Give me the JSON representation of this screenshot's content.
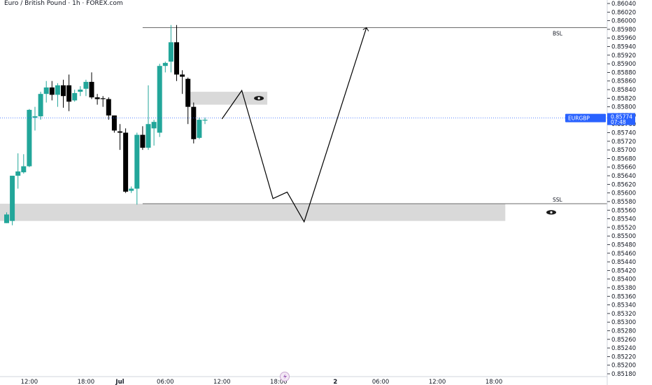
{
  "header": {
    "title": "Euro / British Pound · 1h · FOREX.com"
  },
  "colors": {
    "up": "#22a69a",
    "down": "#000000",
    "zone": "#d9d9d9",
    "price_tag": "#2962ff",
    "path": "#000000"
  },
  "levels": {
    "bsl": "BSL",
    "ssl": "SSL"
  },
  "price_tag": {
    "symbol": "EURGBP",
    "price": "0.85774",
    "countdown": "07:48"
  },
  "icons": {
    "zone_eye": "eye-icon",
    "timeline_marker": "lightning-icon"
  },
  "chart_data": {
    "type": "candlestick",
    "title": "Euro / British Pound · 1h · FOREX.com",
    "y_range": [
      0.8518,
      0.8604
    ],
    "y_ticks": [
      "0.86040",
      "0.86020",
      "0.86000",
      "0.85980",
      "0.85960",
      "0.85940",
      "0.85920",
      "0.85900",
      "0.85880",
      "0.85860",
      "0.85840",
      "0.85820",
      "0.85800",
      "0.85780",
      "0.85760",
      "0.85740",
      "0.85720",
      "0.85700",
      "0.85680",
      "0.85660",
      "0.85640",
      "0.85620",
      "0.85600",
      "0.85580",
      "0.85560",
      "0.85540",
      "0.85520",
      "0.85500",
      "0.85480",
      "0.85460",
      "0.85440",
      "0.85420",
      "0.85400",
      "0.85380",
      "0.85360",
      "0.85340",
      "0.85320",
      "0.85300",
      "0.85280",
      "0.85260",
      "0.85240",
      "0.85220",
      "0.85200",
      "0.85180"
    ],
    "x_labels": [
      {
        "label": "12:00",
        "bar": 4
      },
      {
        "label": "18:00",
        "bar": 14
      },
      {
        "label": "Jul",
        "bar": 20
      },
      {
        "label": "06:00",
        "bar": 28
      },
      {
        "label": "12:00",
        "bar": 38
      },
      {
        "label": "18:00",
        "bar": 48
      },
      {
        "label": "2",
        "bar": 58
      },
      {
        "label": "06:00",
        "bar": 66
      },
      {
        "label": "12:00",
        "bar": 76
      },
      {
        "label": "18:00",
        "bar": 86
      }
    ],
    "candles": [
      {
        "o": 0.8553,
        "h": 0.85555,
        "l": 0.8553,
        "c": 0.8555
      },
      {
        "o": 0.85535,
        "h": 0.8564,
        "l": 0.85525,
        "c": 0.8564
      },
      {
        "o": 0.8564,
        "h": 0.85692,
        "l": 0.8561,
        "c": 0.8565
      },
      {
        "o": 0.85648,
        "h": 0.8569,
        "l": 0.85645,
        "c": 0.85662
      },
      {
        "o": 0.85662,
        "h": 0.85795,
        "l": 0.8566,
        "c": 0.85793
      },
      {
        "o": 0.85775,
        "h": 0.858,
        "l": 0.85745,
        "c": 0.85778
      },
      {
        "o": 0.85778,
        "h": 0.85835,
        "l": 0.8577,
        "c": 0.8583
      },
      {
        "o": 0.8583,
        "h": 0.8586,
        "l": 0.8581,
        "c": 0.85845
      },
      {
        "o": 0.85845,
        "h": 0.8586,
        "l": 0.85815,
        "c": 0.85828
      },
      {
        "o": 0.85828,
        "h": 0.85855,
        "l": 0.858,
        "c": 0.8585
      },
      {
        "o": 0.8585,
        "h": 0.85863,
        "l": 0.85798,
        "c": 0.85825
      },
      {
        "o": 0.8585,
        "h": 0.85875,
        "l": 0.8579,
        "c": 0.85812
      },
      {
        "o": 0.85815,
        "h": 0.8584,
        "l": 0.85812,
        "c": 0.85832
      },
      {
        "o": 0.85835,
        "h": 0.85848,
        "l": 0.85825,
        "c": 0.8584
      },
      {
        "o": 0.85842,
        "h": 0.85863,
        "l": 0.85825,
        "c": 0.85858
      },
      {
        "o": 0.85858,
        "h": 0.8588,
        "l": 0.85818,
        "c": 0.85822
      },
      {
        "o": 0.85822,
        "h": 0.8583,
        "l": 0.85805,
        "c": 0.85818
      },
      {
        "o": 0.8582,
        "h": 0.85825,
        "l": 0.858,
        "c": 0.85818
      },
      {
        "o": 0.85818,
        "h": 0.85822,
        "l": 0.8577,
        "c": 0.8578
      },
      {
        "o": 0.8578,
        "h": 0.8578,
        "l": 0.8574,
        "c": 0.85745
      },
      {
        "o": 0.85743,
        "h": 0.8576,
        "l": 0.857,
        "c": 0.8574
      },
      {
        "o": 0.8574,
        "h": 0.8575,
        "l": 0.856,
        "c": 0.85603
      },
      {
        "o": 0.85605,
        "h": 0.85615,
        "l": 0.856,
        "c": 0.8561
      },
      {
        "o": 0.8561,
        "h": 0.8574,
        "l": 0.85573,
        "c": 0.85735
      },
      {
        "o": 0.85735,
        "h": 0.85755,
        "l": 0.857,
        "c": 0.85705
      },
      {
        "o": 0.85705,
        "h": 0.8585,
        "l": 0.857,
        "c": 0.8576
      },
      {
        "o": 0.8575,
        "h": 0.8577,
        "l": 0.8571,
        "c": 0.85765
      },
      {
        "o": 0.8574,
        "h": 0.859,
        "l": 0.8573,
        "c": 0.85895
      },
      {
        "o": 0.85895,
        "h": 0.85905,
        "l": 0.8588,
        "c": 0.85902
      },
      {
        "o": 0.85905,
        "h": 0.8599,
        "l": 0.8588,
        "c": 0.8595
      },
      {
        "o": 0.8595,
        "h": 0.8599,
        "l": 0.8586,
        "c": 0.85875
      },
      {
        "o": 0.85875,
        "h": 0.85885,
        "l": 0.8583,
        "c": 0.8587
      },
      {
        "o": 0.85865,
        "h": 0.85868,
        "l": 0.8576,
        "c": 0.858
      },
      {
        "o": 0.858,
        "h": 0.8581,
        "l": 0.85715,
        "c": 0.85725
      },
      {
        "o": 0.85728,
        "h": 0.85775,
        "l": 0.85725,
        "c": 0.8577
      },
      {
        "o": 0.8577,
        "h": 0.85775,
        "l": 0.8576,
        "c": 0.8577
      }
    ],
    "zones": [
      {
        "name": "supply-zone",
        "from_bar": 32,
        "to_bar": 46,
        "top": 0.85835,
        "bottom": 0.85805
      },
      {
        "name": "demand-zone",
        "from_bar": -1,
        "to_bar": 88,
        "top": 0.85575,
        "bottom": 0.85535
      }
    ],
    "levels": [
      {
        "label": "BSL",
        "price": 0.85984,
        "from_bar": 24
      },
      {
        "label": "SSL",
        "price": 0.85575,
        "from_bar": 24
      }
    ],
    "projection": [
      {
        "bar": 38,
        "price": 0.85772
      },
      {
        "bar": 41.5,
        "price": 0.85838
      },
      {
        "bar": 47,
        "price": 0.85587
      },
      {
        "bar": 49.5,
        "price": 0.85602
      },
      {
        "bar": 52.5,
        "price": 0.85533
      },
      {
        "bar": 63.5,
        "price": 0.85984
      }
    ],
    "last_price": 0.85774
  }
}
